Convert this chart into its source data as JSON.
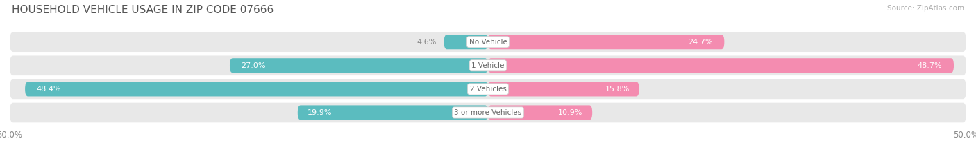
{
  "title": "HOUSEHOLD VEHICLE USAGE IN ZIP CODE 07666",
  "source": "Source: ZipAtlas.com",
  "categories": [
    "No Vehicle",
    "1 Vehicle",
    "2 Vehicles",
    "3 or more Vehicles"
  ],
  "owner_values": [
    4.6,
    27.0,
    48.4,
    19.9
  ],
  "renter_values": [
    24.7,
    48.7,
    15.8,
    10.9
  ],
  "owner_color": "#5bbcbf",
  "renter_color": "#f48cb0",
  "bar_bg_color": "#e8e8e8",
  "background_color": "#ffffff",
  "axis_min": -50,
  "axis_max": 50,
  "bar_height": 0.62,
  "title_fontsize": 11,
  "source_fontsize": 7.5,
  "tick_fontsize": 8.5,
  "legend_fontsize": 8.5,
  "value_fontsize": 8,
  "category_fontsize": 7.5
}
